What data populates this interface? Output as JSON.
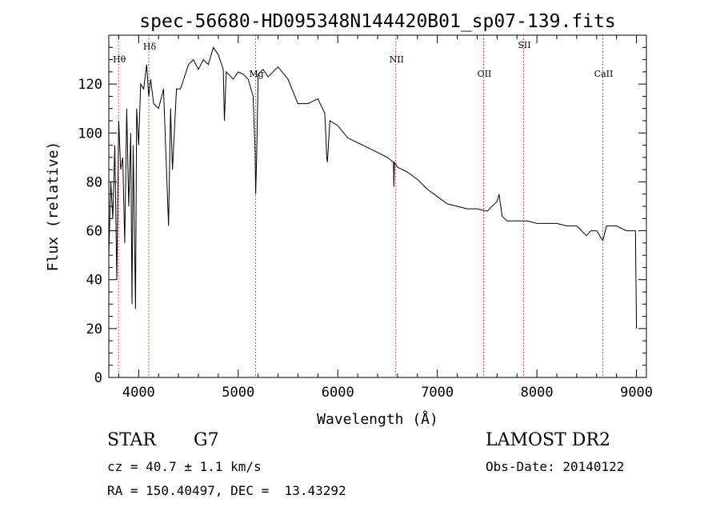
{
  "chart_data": {
    "type": "line",
    "title": "spec-56680-HD095348N144420B01_sp07-139.fits",
    "xlabel": "Wavelength (Å)",
    "ylabel": "Flux (relative)",
    "xlim": [
      3700,
      9100
    ],
    "ylim": [
      0,
      140
    ],
    "xticks": [
      4000,
      5000,
      6000,
      7000,
      8000,
      9000
    ],
    "yticks": [
      0,
      20,
      40,
      60,
      80,
      100,
      120
    ],
    "grid": false,
    "series": [
      {
        "x": [
          3700,
          3720,
          3740,
          3760,
          3780,
          3800,
          3820,
          3840,
          3860,
          3880,
          3900,
          3920,
          3933,
          3945,
          3968,
          3980,
          4000,
          4020,
          4050,
          4080,
          4101,
          4120,
          4150,
          4200,
          4250,
          4300,
          4320,
          4340,
          4380,
          4420,
          4460,
          4500,
          4550,
          4600,
          4650,
          4700,
          4750,
          4800,
          4850,
          4861,
          4880,
          4950,
          5000,
          5050,
          5100,
          5150,
          5170,
          5175,
          5185,
          5200,
          5250,
          5300,
          5400,
          5500,
          5600,
          5700,
          5800,
          5870,
          5890,
          5896,
          5920,
          6000,
          6100,
          6200,
          6300,
          6400,
          6500,
          6560,
          6563,
          6570,
          6600,
          6700,
          6800,
          6900,
          7000,
          7100,
          7200,
          7300,
          7400,
          7500,
          7550,
          7600,
          7620,
          7650,
          7700,
          7800,
          7900,
          8000,
          8100,
          8200,
          8300,
          8400,
          8498,
          8542,
          8600,
          8662,
          8700,
          8800,
          8900,
          8990,
          9000
        ],
        "y": [
          50,
          80,
          65,
          95,
          40,
          105,
          85,
          90,
          55,
          110,
          70,
          100,
          30,
          95,
          28,
          110,
          95,
          120,
          118,
          128,
          115,
          122,
          112,
          110,
          118,
          62,
          110,
          85,
          118,
          118,
          123,
          128,
          130,
          126,
          130,
          128,
          135,
          132,
          126,
          105,
          125,
          122,
          125,
          124,
          122,
          115,
          92,
          75,
          90,
          124,
          126,
          123,
          127,
          122,
          112,
          112,
          114,
          108,
          90,
          88,
          105,
          103,
          98,
          96,
          94,
          92,
          90,
          88,
          78,
          88,
          86,
          84,
          81,
          77,
          74,
          71,
          70,
          69,
          69,
          68,
          70,
          72,
          75,
          66,
          64,
          64,
          64,
          63,
          63,
          63,
          62,
          62,
          58,
          60,
          60,
          56,
          62,
          62,
          60,
          60,
          20
        ]
      }
    ],
    "annotations": [
      {
        "label": "Hθ",
        "x": 3798
      },
      {
        "label": "Hδ",
        "x": 4102
      },
      {
        "label": "Mg",
        "x": 5175
      },
      {
        "label": "NII",
        "x": 6583
      },
      {
        "label": "OII",
        "x": 7465
      },
      {
        "label": "SII",
        "x": 7866
      },
      {
        "label": "CaII",
        "x": 8662
      }
    ]
  },
  "info": {
    "object_class": "STAR",
    "subclass": "G7",
    "survey": "LAMOST DR2",
    "cz": "cz = 40.7 ± 1.1 km/s",
    "obs_date": "Obs-Date: 20140122",
    "radec": "RA = 150.40497, DEC =  13.43292"
  }
}
